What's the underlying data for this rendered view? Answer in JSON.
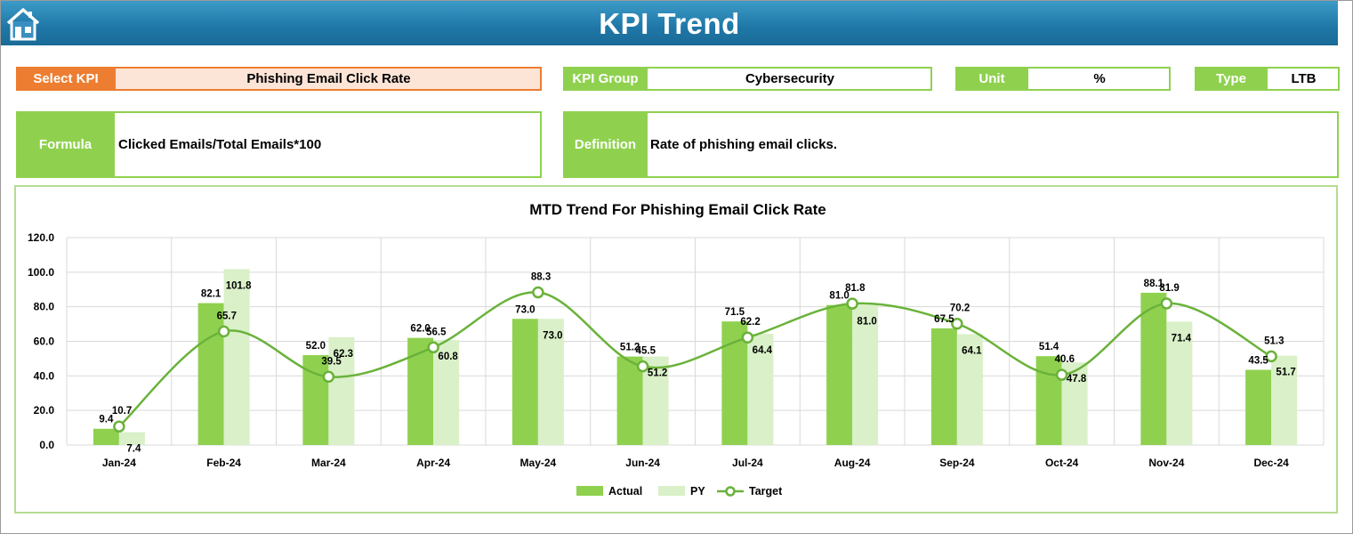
{
  "header": {
    "title": "KPI Trend",
    "home_icon": "home-icon"
  },
  "select_kpi": {
    "label": "Select KPI",
    "value": "Phishing Email Click Rate"
  },
  "kpi_group": {
    "label": "KPI Group",
    "value": "Cybersecurity"
  },
  "unit": {
    "label": "Unit",
    "value": "%"
  },
  "type": {
    "label": "Type",
    "value": "LTB"
  },
  "formula": {
    "label": "Formula",
    "value": "Clicked Emails/Total Emails*100"
  },
  "definition": {
    "label": "Definition",
    "value": "Rate of phishing email clicks."
  },
  "colors": {
    "header": "#1f77a7",
    "select_label": "#ed7d31",
    "select_value_bg": "#fce4d6",
    "green": "#8fd14f",
    "green_light": "#d9f0c8",
    "target_line": "#6ab23a"
  },
  "chart_data": {
    "type": "bar",
    "title": "MTD Trend For Phishing Email Click Rate",
    "categories": [
      "Jan-24",
      "Feb-24",
      "Mar-24",
      "Apr-24",
      "May-24",
      "Jun-24",
      "Jul-24",
      "Aug-24",
      "Sep-24",
      "Oct-24",
      "Nov-24",
      "Dec-24"
    ],
    "y_ticks": [
      "120.0",
      "100.0",
      "80.0",
      "60.0",
      "40.0",
      "20.0",
      "0.0"
    ],
    "ylim": [
      0,
      120
    ],
    "grid": true,
    "legend_position": "bottom",
    "series": [
      {
        "name": "Actual",
        "type": "bar",
        "color": "#8fd14f",
        "values": [
          9.4,
          82.1,
          52.0,
          62.0,
          73.0,
          51.2,
          71.5,
          81.0,
          67.5,
          51.4,
          88.1,
          43.5
        ]
      },
      {
        "name": "PY",
        "type": "bar",
        "color": "#d9f0c8",
        "values": [
          7.4,
          101.8,
          62.3,
          60.8,
          73.0,
          51.2,
          64.4,
          81.0,
          64.1,
          47.8,
          71.4,
          51.7
        ]
      },
      {
        "name": "Target",
        "type": "line",
        "color": "#6ab23a",
        "values": [
          10.7,
          65.7,
          39.5,
          56.5,
          88.3,
          45.5,
          62.2,
          81.8,
          70.2,
          40.6,
          81.9,
          51.3
        ]
      }
    ]
  }
}
